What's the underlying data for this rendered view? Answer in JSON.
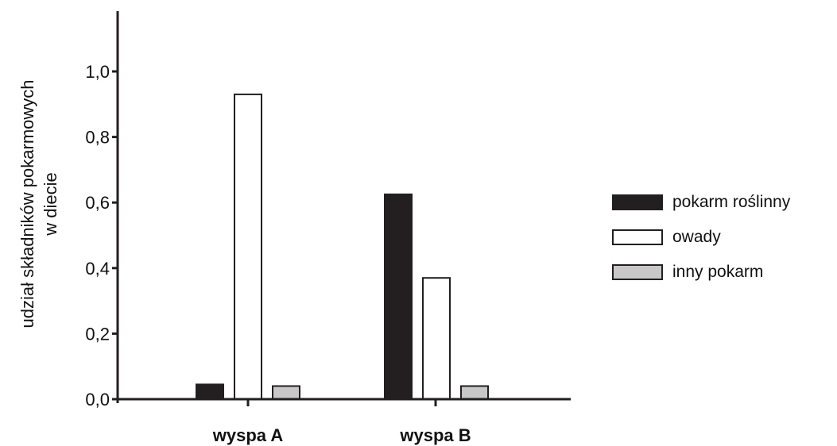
{
  "chart_data": {
    "type": "bar",
    "title": "",
    "ylabel_lines": [
      "udział składników pokarmowych",
      "w diecie"
    ],
    "xlabel": "",
    "categories": [
      "wyspa A",
      "wyspa B"
    ],
    "series": [
      {
        "name": "pokarm roślinny",
        "values": [
          0.045,
          0.625
        ],
        "fill": "#231f20",
        "stroke": "#231f20"
      },
      {
        "name": "owady",
        "values": [
          0.93,
          0.37
        ],
        "fill": "#ffffff",
        "stroke": "#231f20"
      },
      {
        "name": "inny pokarm",
        "values": [
          0.04,
          0.04
        ],
        "fill": "#c8c8c8",
        "stroke": "#231f20"
      }
    ],
    "ylim": [
      0,
      1.0
    ],
    "yticks": [
      {
        "value": 0.0,
        "label": "0,0"
      },
      {
        "value": 0.2,
        "label": "0,2"
      },
      {
        "value": 0.4,
        "label": "0,4"
      },
      {
        "value": 0.6,
        "label": "0,6"
      },
      {
        "value": 0.8,
        "label": "0,8"
      },
      {
        "value": 1.0,
        "label": "1,0"
      }
    ],
    "legend_position": "right",
    "grid": false
  }
}
